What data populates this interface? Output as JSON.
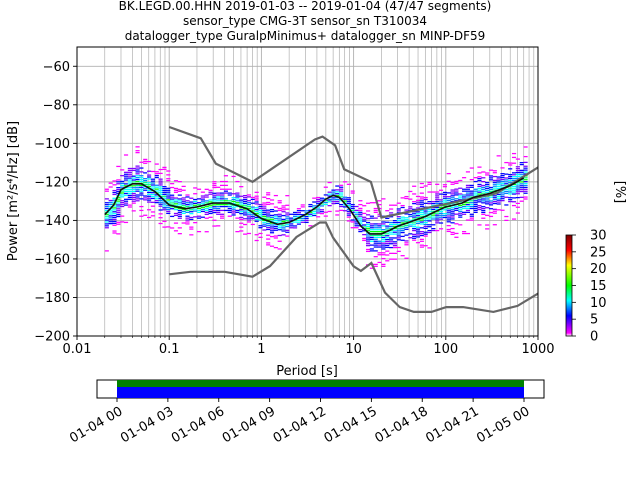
{
  "title_lines": [
    "BK.LEGD.00.HHN   2019-01-03 -- 2019-01-04  (47/47 segments)",
    "sensor_type CMG-3T sensor_sn T310034",
    "datalogger_type GuralpMinimus+ datalogger_sn MINP-DF59"
  ],
  "chart_data": {
    "type": "heatmap",
    "xlabel": "Period [s]",
    "ylabel": "Power [m²/s⁴/Hz] [dB]",
    "xscale": "log",
    "xlim": [
      0.01,
      1000
    ],
    "ylim": [
      -200,
      -50
    ],
    "grid": true,
    "x_tick_labels": [
      "0.01",
      "0.1",
      "1",
      "10",
      "100",
      "1000"
    ],
    "y_tick_labels": [
      "−60",
      "−80",
      "−100",
      "−120",
      "−140",
      "−160",
      "−180",
      "−200"
    ],
    "y_ticks": [
      -60,
      -80,
      -100,
      -120,
      -140,
      -160,
      -180,
      -200
    ],
    "colorbar": {
      "label": "[%]",
      "range": [
        0,
        30
      ],
      "tick_labels": [
        "0",
        "5",
        "10",
        "15",
        "20",
        "25",
        "30"
      ],
      "ticks": [
        0,
        5,
        10,
        15,
        20,
        25,
        30
      ]
    },
    "noise_models": [
      {
        "name": "NHNM",
        "x": [
          0.1,
          0.22,
          0.32,
          0.8,
          3.8,
          4.6,
          6.3,
          7.9,
          15.4,
          20,
          354.8,
          1000
        ],
        "y": [
          -91.5,
          -97.4,
          -110.5,
          -120,
          -98,
          -96.5,
          -101,
          -113.5,
          -120,
          -138.5,
          -126,
          -112.5
        ]
      },
      {
        "name": "NLNM",
        "x": [
          0.1,
          0.17,
          0.4,
          0.8,
          1.24,
          2.4,
          4.3,
          5,
          6,
          10,
          12,
          15.6,
          21.9,
          31.6,
          45,
          70,
          101,
          154,
          328,
          600,
          1000
        ],
        "y": [
          -168,
          -166.7,
          -166.7,
          -169.2,
          -163.7,
          -148.6,
          -141.1,
          -141.1,
          -149,
          -163.8,
          -166.2,
          -162.1,
          -177.5,
          -185,
          -187.5,
          -187.5,
          -185,
          -185,
          -187.5,
          -184.4,
          -178
        ]
      }
    ],
    "mean_curve": {
      "x": [
        0.02,
        0.025,
        0.03,
        0.04,
        0.05,
        0.07,
        0.1,
        0.15,
        0.2,
        0.3,
        0.45,
        0.7,
        1,
        1.5,
        2,
        3,
        4,
        5,
        6,
        7,
        9,
        12,
        15,
        20,
        25,
        30,
        40,
        60,
        80,
        100,
        150,
        200,
        300,
        500,
        700
      ],
      "y": [
        -137,
        -132,
        -124,
        -121,
        -121,
        -125,
        -132,
        -134,
        -133,
        -131,
        -131,
        -134,
        -139,
        -142,
        -141,
        -137,
        -133,
        -129,
        -127,
        -128,
        -134,
        -143,
        -147,
        -147,
        -145,
        -143,
        -141,
        -138,
        -135,
        -133,
        -131,
        -128,
        -126,
        -122,
        -118
      ]
    },
    "time_axis": {
      "tick_labels": [
        "01-04 00",
        "01-04 03",
        "01-04 06",
        "01-04 09",
        "01-04 12",
        "01-04 15",
        "01-04 18",
        "01-04 21",
        "01-05 00"
      ],
      "colors": [
        "#008000",
        "#0000ff"
      ]
    },
    "colormap": [
      "#ffffff",
      "#ff00ff",
      "#0000ff",
      "#00ffff",
      "#00ff00",
      "#ffff00",
      "#ff0000",
      "#800000"
    ]
  }
}
